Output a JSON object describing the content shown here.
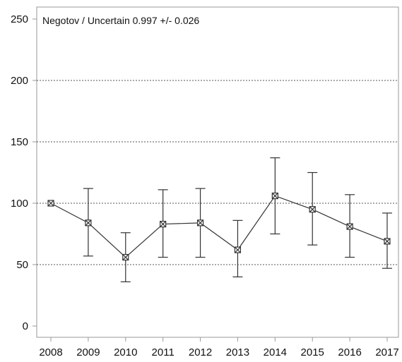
{
  "chart_data": {
    "type": "line",
    "title": "",
    "annotation": "Negotov / Uncertain  0.997 +/- 0.026",
    "xlabel": "",
    "ylabel": "",
    "categories": [
      "2008",
      "2009",
      "2010",
      "2011",
      "2012",
      "2013",
      "2014",
      "2015",
      "2016",
      "2017"
    ],
    "series": [
      {
        "values": [
          100,
          84,
          56,
          83,
          84,
          62,
          106,
          95,
          81,
          69
        ],
        "lower": [
          100,
          57,
          36,
          56,
          56,
          40,
          75,
          66,
          56,
          47
        ],
        "upper": [
          100,
          112,
          76,
          111,
          112,
          86,
          137,
          125,
          107,
          92
        ]
      }
    ],
    "ylim": [
      0,
      250
    ],
    "yticks": [
      "0",
      "50",
      "100",
      "150",
      "200",
      "250"
    ],
    "grid": "horizontal dotted at 50, 100, 150, 200",
    "colors": {
      "line": "#333333",
      "grid": "#555555",
      "frame": "#999999",
      "text": "#111111"
    }
  }
}
